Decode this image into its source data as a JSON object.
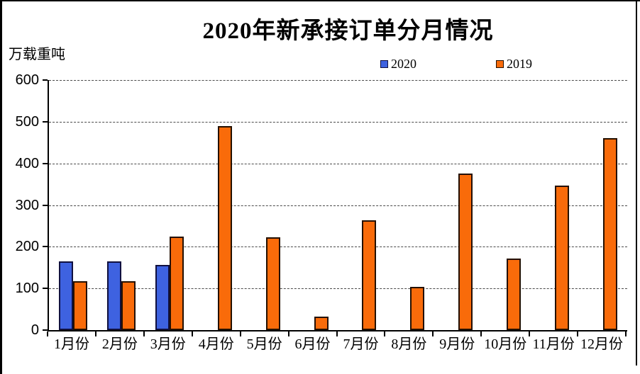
{
  "page": {
    "background": "#ffffff",
    "border_color": "#000000"
  },
  "chart_data": {
    "type": "bar",
    "title": "2020年新承接订单分月情况",
    "unit_label": "万载重吨",
    "xlabel": "",
    "ylabel": "万载重吨",
    "categories": [
      "1月份",
      "2月份",
      "3月份",
      "4月份",
      "5月份",
      "6月份",
      "7月份",
      "8月份",
      "9月份",
      "10月份",
      "11月份",
      "12月份"
    ],
    "series": [
      {
        "name": "2020",
        "color": "#3e62e0",
        "border_color": "#10103f",
        "values": [
          165,
          165,
          157,
          null,
          null,
          null,
          null,
          null,
          null,
          null,
          null,
          null
        ]
      },
      {
        "name": "2019",
        "color": "#f96b0a",
        "border_color": "#241000",
        "values": [
          117,
          117,
          225,
          490,
          223,
          32,
          264,
          103,
          375,
          171,
          346,
          461
        ]
      }
    ],
    "ylim": [
      0,
      600
    ],
    "yticks": [
      0,
      100,
      200,
      300,
      400,
      500,
      600
    ],
    "grid": "horizontal-dashed",
    "gridline_color": "#4a4a4a",
    "axis_color": "#000000",
    "legend_position": "top"
  }
}
